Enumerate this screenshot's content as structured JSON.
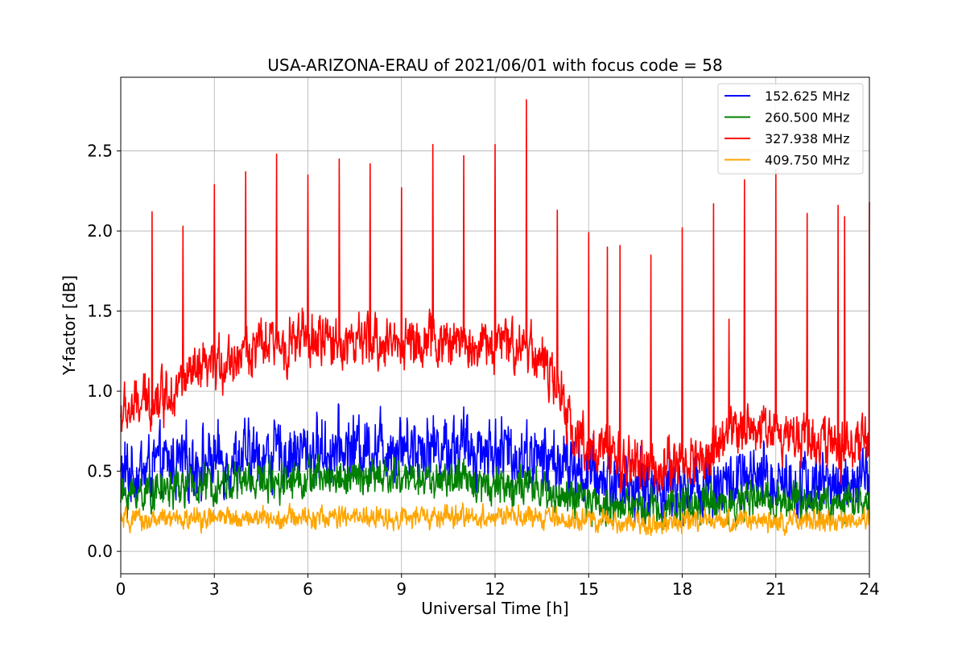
{
  "chart_data": {
    "type": "line",
    "title": "USA-ARIZONA-ERAU of 2021/06/01 with focus code = 58",
    "xlabel": "Universal Time [h]",
    "ylabel": "Y-factor [dB]",
    "xlim": [
      0,
      24
    ],
    "ylim": [
      -0.14,
      2.96
    ],
    "xticks": [
      0,
      3,
      6,
      9,
      12,
      15,
      18,
      21,
      24
    ],
    "yticks": [
      0.0,
      0.5,
      1.0,
      1.5,
      2.0,
      2.5
    ],
    "grid": true,
    "legend_position": "top-right",
    "series": [
      {
        "name": "152.625 MHz",
        "color": "#0000ff",
        "baseline_hours": [
          0,
          1,
          2,
          3,
          4,
          5,
          6,
          7,
          8,
          9,
          10,
          11,
          12,
          13,
          14,
          15,
          16,
          17,
          18,
          19,
          20,
          21,
          22,
          23,
          24
        ],
        "baseline_values": [
          0.48,
          0.52,
          0.55,
          0.57,
          0.58,
          0.6,
          0.62,
          0.64,
          0.66,
          0.67,
          0.66,
          0.65,
          0.63,
          0.6,
          0.55,
          0.48,
          0.42,
          0.4,
          0.4,
          0.42,
          0.43,
          0.44,
          0.43,
          0.42,
          0.42
        ],
        "noise_amplitude": 0.28,
        "spikes": []
      },
      {
        "name": "260.500 MHz",
        "color": "#008000",
        "baseline_hours": [
          0,
          1,
          2,
          3,
          4,
          5,
          6,
          7,
          8,
          9,
          10,
          11,
          12,
          13,
          14,
          15,
          16,
          17,
          18,
          19,
          20,
          21,
          22,
          23,
          24
        ],
        "baseline_values": [
          0.35,
          0.38,
          0.4,
          0.42,
          0.44,
          0.45,
          0.46,
          0.46,
          0.46,
          0.46,
          0.45,
          0.44,
          0.42,
          0.4,
          0.35,
          0.3,
          0.28,
          0.28,
          0.29,
          0.3,
          0.31,
          0.32,
          0.31,
          0.3,
          0.3
        ],
        "noise_amplitude": 0.16,
        "spikes": []
      },
      {
        "name": "327.938 MHz",
        "color": "#ff0000",
        "baseline_hours": [
          0,
          1,
          2,
          3,
          4,
          5,
          6,
          7,
          8,
          9,
          10,
          11,
          12,
          13,
          13.5,
          14,
          14.5,
          15,
          16,
          17,
          18,
          19,
          20,
          21,
          22,
          23,
          24
        ],
        "baseline_values": [
          0.85,
          0.95,
          1.05,
          1.15,
          1.25,
          1.3,
          1.32,
          1.31,
          1.3,
          1.31,
          1.31,
          1.3,
          1.29,
          1.3,
          1.2,
          1.0,
          0.75,
          0.65,
          0.55,
          0.52,
          0.55,
          0.62,
          0.8,
          0.75,
          0.72,
          0.65,
          0.68
        ],
        "noise_amplitude": 0.22,
        "spikes": [
          [
            1.0,
            2.12
          ],
          [
            2.0,
            2.03
          ],
          [
            3.0,
            2.29
          ],
          [
            4.0,
            2.37
          ],
          [
            5.0,
            2.48
          ],
          [
            6.0,
            2.35
          ],
          [
            7.0,
            2.45
          ],
          [
            8.0,
            2.42
          ],
          [
            9.0,
            2.27
          ],
          [
            10.0,
            2.54
          ],
          [
            11.0,
            2.47
          ],
          [
            12.0,
            2.54
          ],
          [
            13.0,
            2.82
          ],
          [
            14.0,
            2.13
          ],
          [
            15.0,
            1.99
          ],
          [
            15.6,
            1.9
          ],
          [
            16.0,
            1.91
          ],
          [
            17.0,
            1.85
          ],
          [
            18.0,
            2.02
          ],
          [
            19.0,
            2.17
          ],
          [
            19.5,
            1.45
          ],
          [
            20.0,
            2.32
          ],
          [
            21.0,
            2.38
          ],
          [
            22.0,
            2.11
          ],
          [
            23.0,
            2.16
          ],
          [
            23.2,
            2.09
          ],
          [
            24.0,
            2.18
          ]
        ]
      },
      {
        "name": "409.750 MHz",
        "color": "#ffa500",
        "baseline_hours": [
          0,
          2,
          4,
          6,
          8,
          10,
          12,
          14,
          16,
          18,
          20,
          22,
          24
        ],
        "baseline_values": [
          0.19,
          0.2,
          0.21,
          0.21,
          0.21,
          0.21,
          0.22,
          0.2,
          0.18,
          0.18,
          0.19,
          0.19,
          0.19
        ],
        "noise_amplitude": 0.09,
        "spikes": []
      }
    ]
  }
}
